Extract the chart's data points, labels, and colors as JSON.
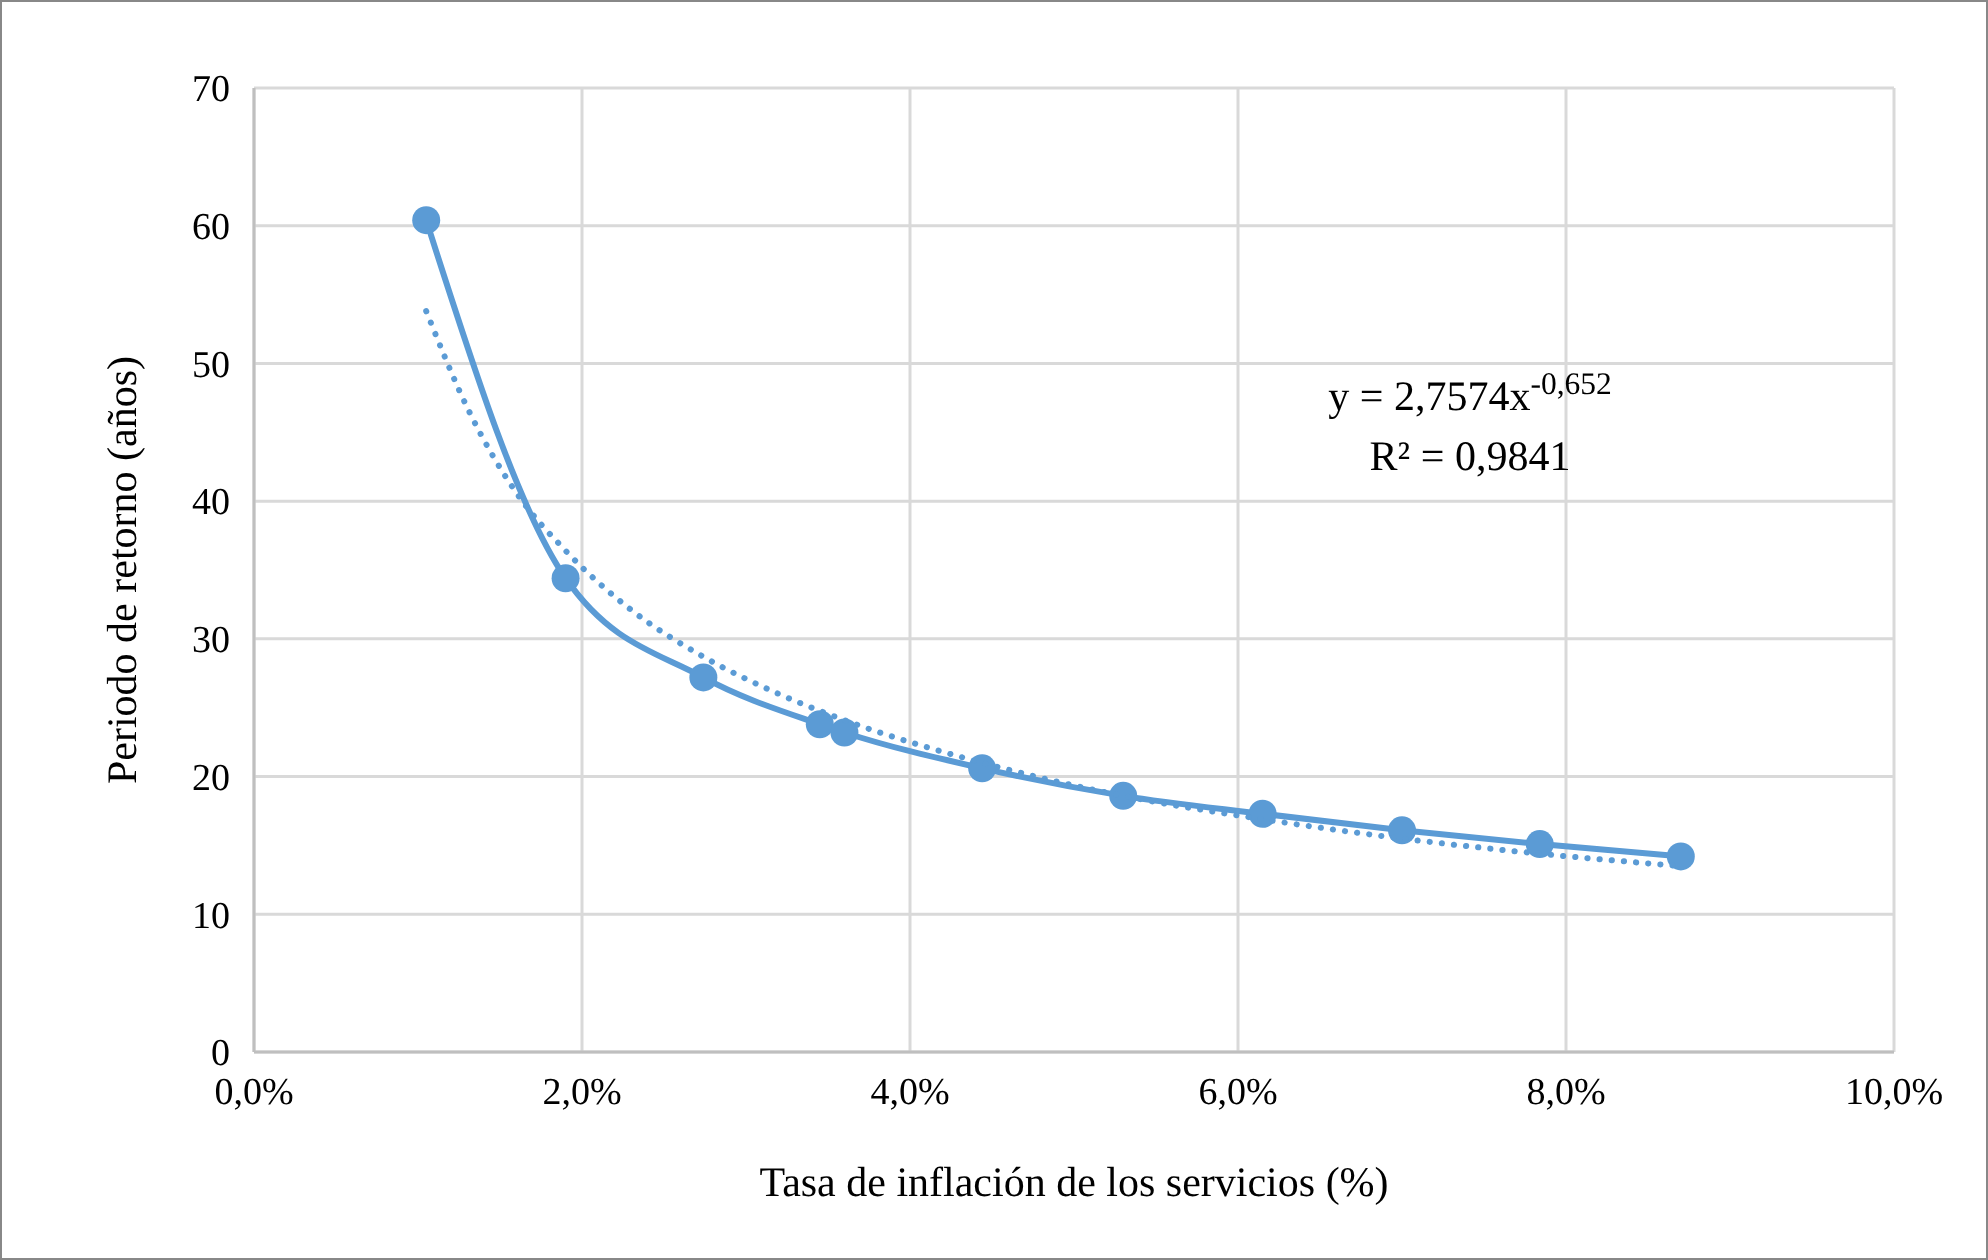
{
  "chart_data": {
    "type": "line",
    "xlabel": "Tasa de inflación de los servicios (%)",
    "ylabel": "Periodo de retorno (años)",
    "xlim": [
      0,
      10
    ],
    "xticks": [
      {
        "value": 0,
        "label": "0,0%"
      },
      {
        "value": 2,
        "label": "2,0%"
      },
      {
        "value": 4,
        "label": "4,0%"
      },
      {
        "value": 6,
        "label": "6,0%"
      },
      {
        "value": 8,
        "label": "8,0%"
      },
      {
        "value": 10,
        "label": "10,0%"
      }
    ],
    "ylim": [
      0,
      70
    ],
    "yticks": [
      0,
      10,
      20,
      30,
      40,
      50,
      60,
      70
    ],
    "grid": true,
    "series": [
      {
        "color": "#5b9bd5",
        "marker": "circle",
        "line_style": "solid",
        "x": [
          1.05,
          1.9,
          2.74,
          3.45,
          3.6,
          4.44,
          5.3,
          6.15,
          7.0,
          7.84,
          8.7
        ],
        "values": [
          60.4,
          34.4,
          27.2,
          23.8,
          23.2,
          20.6,
          18.6,
          17.3,
          16.1,
          15.1,
          14.2
        ]
      },
      {
        "color": "#5b9bd5",
        "marker": "none",
        "line_style": "dotted",
        "x": [
          1.05,
          1.3,
          1.6,
          1.9,
          2.3,
          2.74,
          3.2,
          3.6,
          4.44,
          5.3,
          6.15,
          7.0,
          7.84,
          8.7
        ],
        "values": [
          53.8,
          46.8,
          40.6,
          36.4,
          32.1,
          28.7,
          26.0,
          24.1,
          21.0,
          18.6,
          16.9,
          15.5,
          14.4,
          13.5
        ]
      }
    ],
    "annotations": [
      "y = 2,7574x$^{-0,652}$",
      "R² = 0,9841"
    ]
  }
}
